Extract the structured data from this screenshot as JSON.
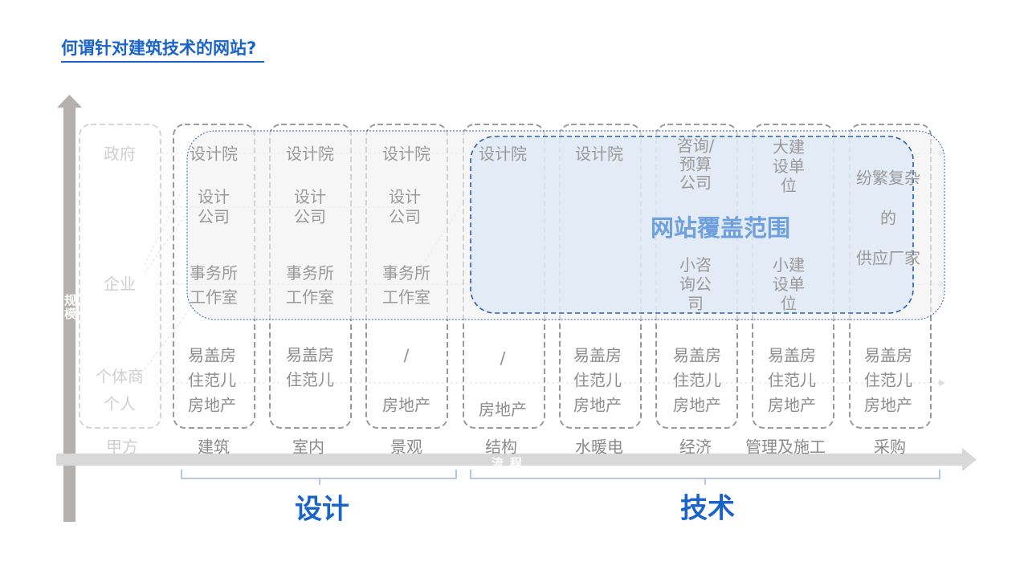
{
  "title": "何谓针对建筑技术的网站?",
  "axes": {
    "vertical": "规模",
    "horizontal": "流程"
  },
  "coverage_label": "网站覆盖范围",
  "groups": {
    "design": "设计",
    "tech": "技术"
  },
  "client": {
    "gov": "政府",
    "corp": "企业",
    "individual": "个体商\n个人",
    "label": "甲方"
  },
  "columns": [
    {
      "label": "建筑",
      "top": "设计院",
      "mid": "设计\n公司",
      "low": "事务所\n工作室",
      "bottom": "易盖房\n住范儿\n房地产"
    },
    {
      "label": "室内",
      "top": "设计院",
      "mid": "设计\n公司",
      "low": "事务所\n工作室",
      "bottom": "易盖房\n住范儿"
    },
    {
      "label": "景观",
      "top": "设计院",
      "mid": "设计\n公司",
      "low": "事务所\n工作室",
      "bottom": "/\n\n房地产"
    },
    {
      "label": "结构",
      "top": "设计院",
      "bottom": "/\n\n房地产"
    },
    {
      "label": "水暖电",
      "top": "设计院",
      "bottom": "易盖房\n住范儿\n房地产"
    },
    {
      "label": "经济",
      "top": "咨询/\n预算\n公司",
      "low": "小咨\n询公\n司",
      "bottom": "易盖房\n住范儿\n房地产"
    },
    {
      "label": "管理及施工",
      "top": "大建\n设单\n位",
      "low": "小建\n设单\n位",
      "bottom": "易盖房\n住范儿\n房地产"
    },
    {
      "label": "采购",
      "top": "纷繁复杂\n\n的\n\n供应厂家",
      "bottom": "易盖房\n住范儿\n房地产"
    }
  ],
  "colors": {
    "accent": "#1a63c9",
    "coverage_fill": "#dce7f5",
    "coverage_border": "#1f5fb5",
    "axis": "#b5b0ae"
  }
}
